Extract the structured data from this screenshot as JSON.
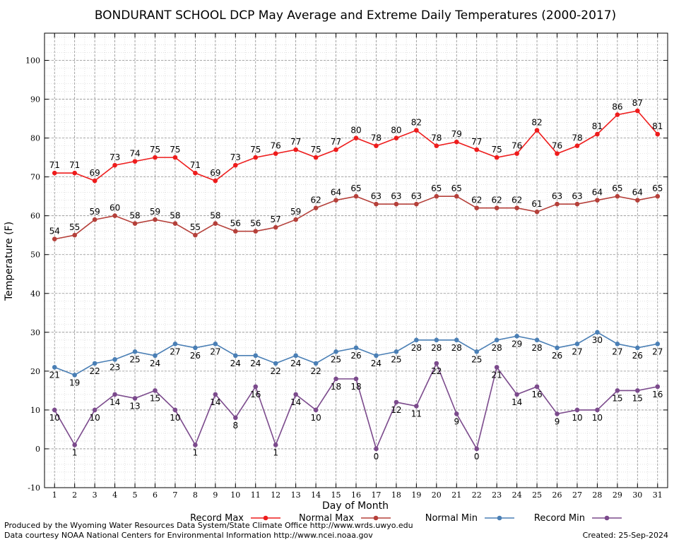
{
  "chart_data": {
    "type": "line",
    "title": "BONDURANT SCHOOL DCP May Average and Extreme Daily Temperatures (2000-2017)",
    "xlabel": "Day of Month",
    "ylabel": "Temperature (F)",
    "x": [
      1,
      2,
      3,
      4,
      5,
      6,
      7,
      8,
      9,
      10,
      11,
      12,
      13,
      14,
      15,
      16,
      17,
      18,
      19,
      20,
      21,
      22,
      23,
      24,
      25,
      26,
      27,
      28,
      29,
      30,
      31
    ],
    "xlim": [
      0.5,
      31.5
    ],
    "ylim": [
      -10,
      107
    ],
    "yticks": [
      -10,
      0,
      10,
      20,
      30,
      40,
      50,
      60,
      70,
      80,
      90,
      100
    ],
    "grid": true,
    "legend_placement": "bottom",
    "series": [
      {
        "name": "Record Max",
        "color": "#ee1c1c",
        "label_position": "above",
        "values": [
          71,
          71,
          69,
          73,
          74,
          75,
          75,
          71,
          69,
          73,
          75,
          76,
          77,
          75,
          77,
          80,
          78,
          80,
          82,
          78,
          79,
          77,
          75,
          76,
          82,
          76,
          78,
          81,
          86,
          87,
          81
        ]
      },
      {
        "name": "Normal Max",
        "color": "#b5403a",
        "label_position": "above",
        "values": [
          54,
          55,
          59,
          60,
          58,
          59,
          58,
          55,
          58,
          56,
          56,
          57,
          59,
          62,
          64,
          65,
          63,
          63,
          63,
          65,
          65,
          62,
          62,
          62,
          61,
          63,
          63,
          64,
          65,
          64,
          65
        ]
      },
      {
        "name": "Normal Min",
        "color": "#4a7fb5",
        "label_position": "below",
        "values": [
          21,
          19,
          22,
          23,
          25,
          24,
          27,
          26,
          27,
          24,
          24,
          22,
          24,
          22,
          25,
          26,
          24,
          25,
          28,
          28,
          28,
          25,
          28,
          29,
          28,
          26,
          27,
          30,
          27,
          26,
          27
        ]
      },
      {
        "name": "Record Min",
        "color": "#7b4a8c",
        "label_position": "below",
        "values": [
          10,
          1,
          10,
          14,
          13,
          15,
          10,
          1,
          14,
          8,
          16,
          1,
          14,
          10,
          18,
          18,
          0,
          12,
          11,
          22,
          9,
          0,
          21,
          14,
          16,
          9,
          10,
          10,
          15,
          15,
          16
        ]
      }
    ]
  },
  "footer": {
    "left_line1": "Produced by the Wyoming Water Resources Data System/State Climate Office http://www.wrds.uwyo.edu",
    "left_line2": "Data courtesy NOAA National Centers for Environmental Information http://www.ncei.noaa.gov",
    "right": "Created:  25-Sep-2024"
  }
}
